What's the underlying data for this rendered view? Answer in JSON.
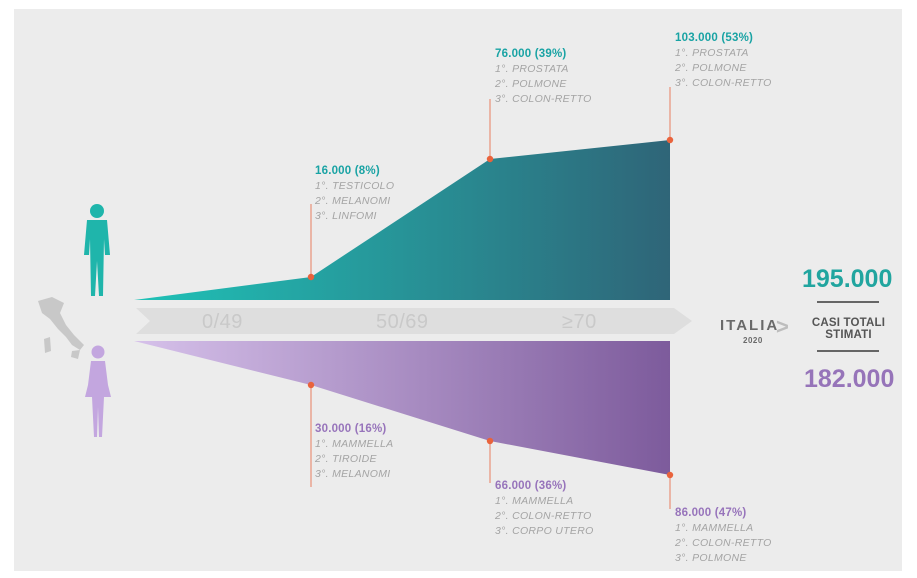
{
  "age_groups": [
    "0/49",
    "50/69",
    "≥70"
  ],
  "country": "ITALIA",
  "year": "2020",
  "totals": {
    "male": "195.000",
    "female": "182.000",
    "caption_line1": "CASI TOTALI",
    "caption_line2": "STIMATI"
  },
  "male": {
    "points": [
      {
        "value": "16.000 (8%)",
        "ranks": [
          "1°. TESTICOLO",
          "2°. MELANOMI",
          "3°. LINFOMI"
        ]
      },
      {
        "value": "76.000 (39%)",
        "ranks": [
          "1°. PROSTATA",
          "2°. POLMONE",
          "3°. COLON-RETTO"
        ]
      },
      {
        "value": "103.000 (53%)",
        "ranks": [
          "1°. PROSTATA",
          "2°. POLMONE",
          "3°. COLON-RETTO"
        ]
      }
    ]
  },
  "female": {
    "points": [
      {
        "value": "30.000 (16%)",
        "ranks": [
          "1°. MAMMELLA",
          "2°. TIROIDE",
          "3°. MELANOMI"
        ]
      },
      {
        "value": "66.000 (36%)",
        "ranks": [
          "1°. MAMMELLA",
          "2°. COLON-RETTO",
          "3°. CORPO UTERO"
        ]
      },
      {
        "value": "86.000 (47%)",
        "ranks": [
          "1°. MAMMELLA",
          "2°. COLON-RETTO",
          "3°. POLMONE"
        ]
      }
    ]
  },
  "colors": {
    "male_start": "#1fc2b7",
    "male_end": "#2f6578",
    "female_start": "#d0b8e6",
    "female_end": "#7d5b9c",
    "marker": "#e9633c",
    "male_text": "#19a3a4",
    "female_text": "#9774bb"
  },
  "icons": [
    "man-silhouette-icon",
    "woman-silhouette-icon",
    "italy-map-icon"
  ]
}
